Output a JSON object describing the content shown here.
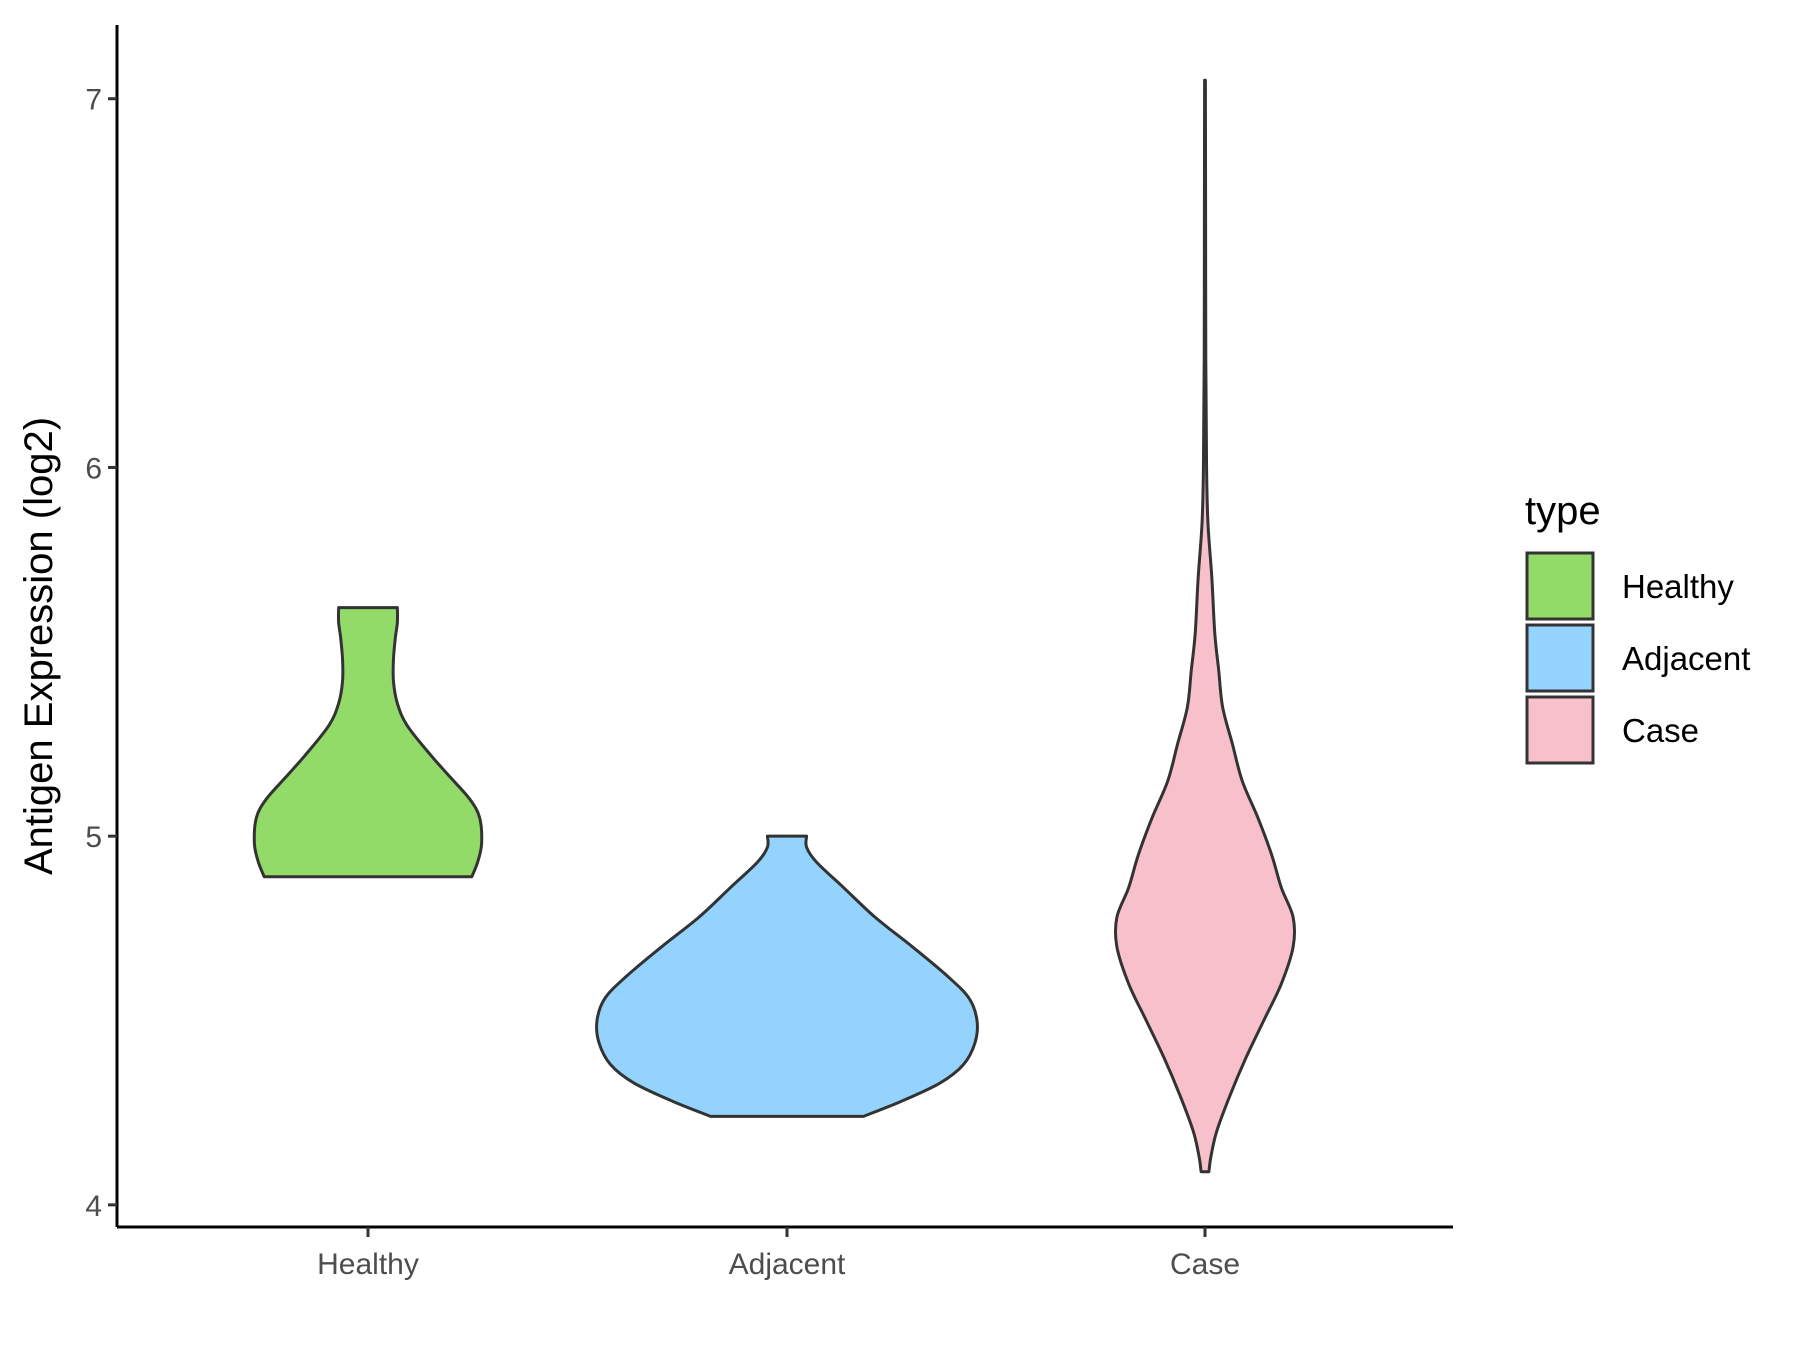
{
  "chart_data": {
    "type": "violin",
    "title": "",
    "xlabel": "",
    "ylabel": "Antigen Expression (log2)",
    "ylim": [
      3.94,
      7.2
    ],
    "yticks": [
      4,
      5,
      6,
      7
    ],
    "ytick_labels": [
      "4",
      "5",
      "6",
      "7"
    ],
    "categories": [
      "Healthy",
      "Adjacent",
      "Case"
    ],
    "grid": false,
    "legend": {
      "title": "type",
      "placement": "right",
      "entries": [
        "Healthy",
        "Adjacent",
        "Case"
      ]
    },
    "series": [
      {
        "name": "Healthy",
        "color": "#93db69",
        "y_min": 4.89,
        "y_max": 5.62,
        "density": [
          [
            4.89,
            0.53
          ],
          [
            4.93,
            0.56
          ],
          [
            4.98,
            0.58
          ],
          [
            5.05,
            0.57
          ],
          [
            5.1,
            0.52
          ],
          [
            5.16,
            0.42
          ],
          [
            5.22,
            0.32
          ],
          [
            5.3,
            0.2
          ],
          [
            5.36,
            0.15
          ],
          [
            5.42,
            0.13
          ],
          [
            5.48,
            0.13
          ],
          [
            5.54,
            0.14
          ],
          [
            5.58,
            0.15
          ],
          [
            5.62,
            0.15
          ]
        ]
      },
      {
        "name": "Adjacent",
        "color": "#93d3fd",
        "y_min": 4.24,
        "y_max": 5.0,
        "density": [
          [
            4.24,
            0.39
          ],
          [
            4.28,
            0.58
          ],
          [
            4.33,
            0.78
          ],
          [
            4.38,
            0.9
          ],
          [
            4.44,
            0.96
          ],
          [
            4.5,
            0.97
          ],
          [
            4.56,
            0.93
          ],
          [
            4.62,
            0.82
          ],
          [
            4.7,
            0.64
          ],
          [
            4.78,
            0.45
          ],
          [
            4.86,
            0.29
          ],
          [
            4.93,
            0.15
          ],
          [
            4.97,
            0.1
          ],
          [
            5.0,
            0.1
          ]
        ]
      },
      {
        "name": "Case",
        "color": "#f8c0cb",
        "y_min": 4.09,
        "y_max": 7.05,
        "density": [
          [
            4.09,
            0.02
          ],
          [
            4.13,
            0.03
          ],
          [
            4.2,
            0.06
          ],
          [
            4.3,
            0.13
          ],
          [
            4.4,
            0.21
          ],
          [
            4.5,
            0.3
          ],
          [
            4.6,
            0.39
          ],
          [
            4.7,
            0.45
          ],
          [
            4.78,
            0.45
          ],
          [
            4.86,
            0.39
          ],
          [
            4.95,
            0.34
          ],
          [
            5.05,
            0.27
          ],
          [
            5.15,
            0.19
          ],
          [
            5.25,
            0.14
          ],
          [
            5.35,
            0.09
          ],
          [
            5.45,
            0.07
          ],
          [
            5.55,
            0.05
          ],
          [
            5.7,
            0.035
          ],
          [
            5.85,
            0.015
          ],
          [
            6.0,
            0.008
          ],
          [
            6.3,
            0.004
          ],
          [
            6.7,
            0.003
          ],
          [
            7.05,
            0.002
          ]
        ]
      }
    ]
  }
}
